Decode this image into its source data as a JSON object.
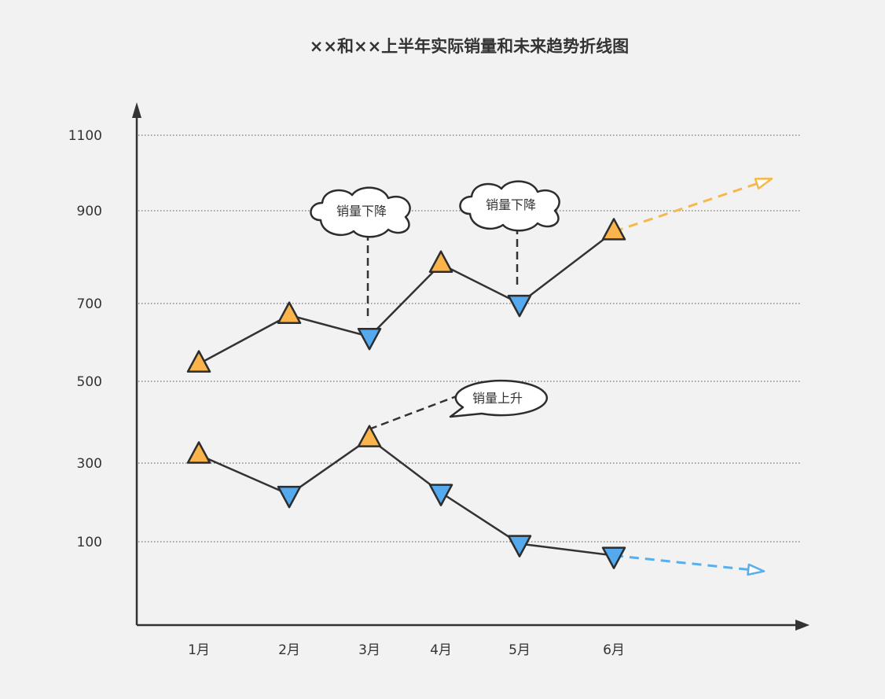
{
  "chart_data": {
    "type": "line",
    "title": "××和××上半年实际销量和未来趋势折线图",
    "xlabel": "",
    "ylabel": "",
    "categories": [
      "1月",
      "2月",
      "3月",
      "4月",
      "5月",
      "6月"
    ],
    "y_ticks": [
      "1100",
      "900",
      "700",
      "500",
      "300",
      "100"
    ],
    "y_tick_values": [
      1100,
      900,
      700,
      500,
      300,
      100
    ],
    "ylim": [
      -120,
      1160
    ],
    "grid": true,
    "series": [
      {
        "values": [
          545,
          670,
          615,
          785,
          700,
          855
        ],
        "markers": [
          "up",
          "up",
          "down",
          "up",
          "down",
          "up"
        ],
        "trend_value": 985,
        "trend_color": "#f7b84b"
      },
      {
        "values": [
          320,
          220,
          360,
          225,
          95,
          65
        ],
        "markers": [
          "up",
          "down",
          "up",
          "down",
          "down",
          "down"
        ],
        "trend_value": 25,
        "trend_color": "#5aaeea"
      }
    ],
    "annotations": [
      {
        "text": "销量下降",
        "shape": "cloud",
        "series": 0,
        "point": 2
      },
      {
        "text": "销量下降",
        "shape": "cloud",
        "series": 0,
        "point": 4
      },
      {
        "text": "销量上升",
        "shape": "speech",
        "series": 1,
        "point": 2
      }
    ],
    "colors": {
      "up": "#fbb44c",
      "down": "#55a9ee",
      "line": "#333333",
      "background": "#f2f2f2"
    }
  }
}
